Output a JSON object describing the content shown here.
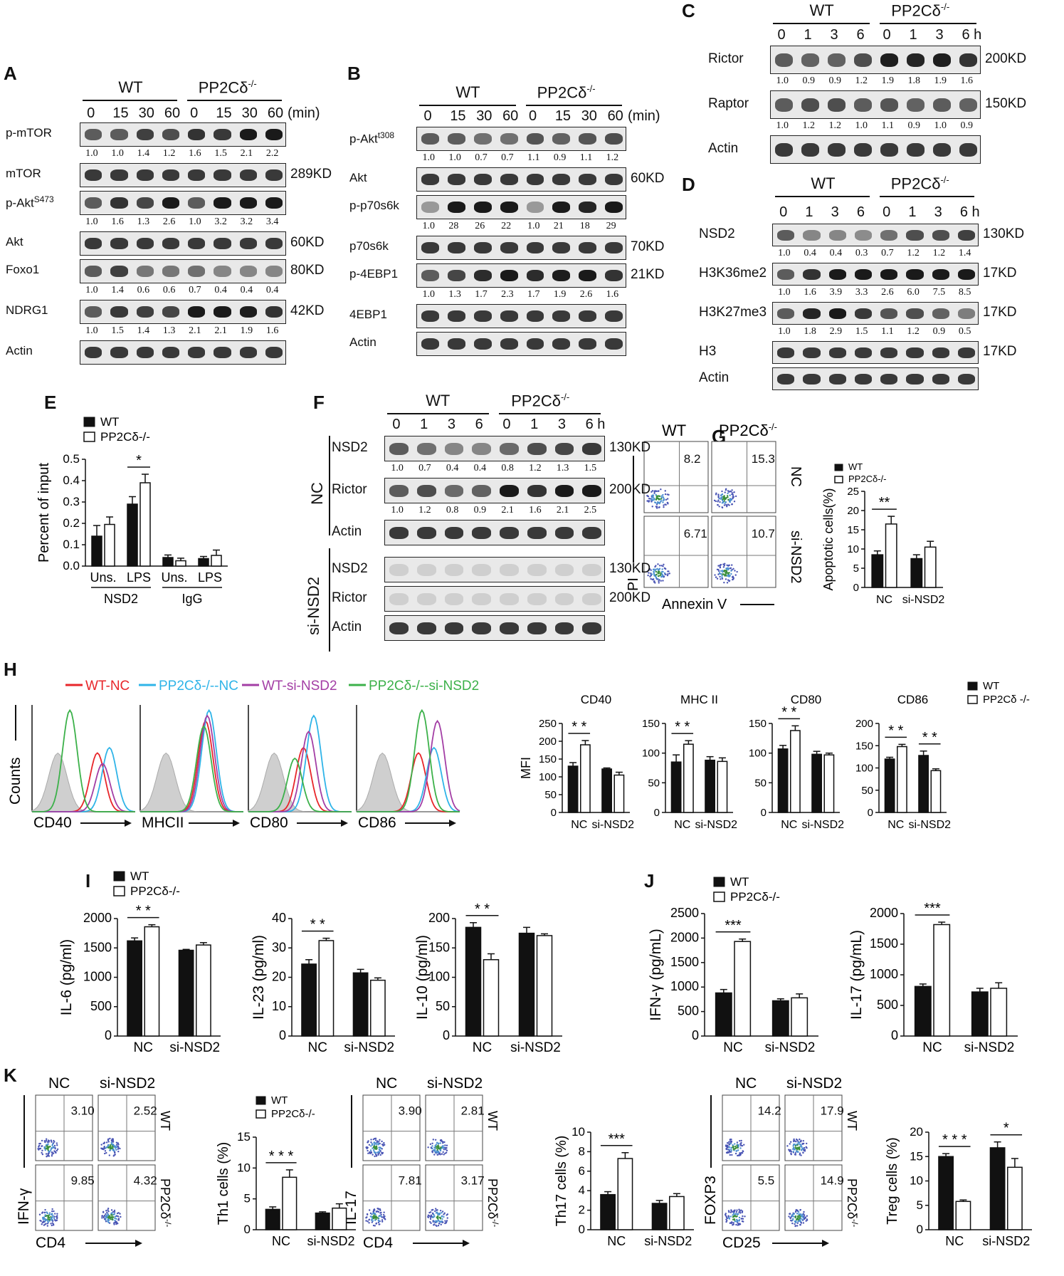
{
  "panel_labels": [
    "A",
    "B",
    "C",
    "D",
    "E",
    "F",
    "G",
    "H",
    "I",
    "J",
    "K"
  ],
  "groups": {
    "wt": "WT",
    "ko": "PP2Cδ-/-",
    "ko_base": "PP2Cδ",
    "ko_sup": "-/-"
  },
  "blot_A": {
    "times": [
      "0",
      "15",
      "30",
      "60",
      "0",
      "15",
      "30",
      "60"
    ],
    "unit": "(min)",
    "rows": [
      {
        "label": "p-mTOR",
        "quant": [
          "1.0",
          "1.0",
          "1.4",
          "1.2",
          "1.6",
          "1.5",
          "2.1",
          "2.2"
        ],
        "size": ""
      },
      {
        "label": "mTOR",
        "quant": [],
        "size": "289KD"
      },
      {
        "label": "p-Akt",
        "sup": "S473",
        "quant": [
          "1.0",
          "1.6",
          "1.3",
          "2.6",
          "1.0",
          "3.2",
          "3.2",
          "3.4"
        ],
        "size": ""
      },
      {
        "label": "Akt",
        "quant": [],
        "size": "60KD"
      },
      {
        "label": "Foxo1",
        "quant": [
          "1.0",
          "1.4",
          "0.6",
          "0.6",
          "0.7",
          "0.4",
          "0.4",
          "0.4"
        ],
        "size": "80KD"
      },
      {
        "label": "NDRG1",
        "quant": [
          "1.0",
          "1.5",
          "1.4",
          "1.3",
          "2.1",
          "2.1",
          "1.9",
          "1.6"
        ],
        "size": "42KD"
      },
      {
        "label": "Actin",
        "quant": [],
        "size": ""
      }
    ]
  },
  "blot_B": {
    "times": [
      "0",
      "15",
      "30",
      "60",
      "0",
      "15",
      "30",
      "60"
    ],
    "unit": "(min)",
    "rows": [
      {
        "label": "p-Akt",
        "sup": "t308",
        "quant": [
          "1.0",
          "1.0",
          "0.7",
          "0.7",
          "1.1",
          "0.9",
          "1.1",
          "1.2"
        ],
        "size": ""
      },
      {
        "label": "Akt",
        "quant": [],
        "size": "60KD"
      },
      {
        "label": "p-p70s6k",
        "quant": [
          "1.0",
          "28",
          "26",
          "22",
          "1.0",
          "21",
          "18",
          "29"
        ],
        "size": ""
      },
      {
        "label": "p70s6k",
        "quant": [],
        "size": "70KD"
      },
      {
        "label": "p-4EBP1",
        "quant": [
          "1.0",
          "1.3",
          "1.7",
          "2.3",
          "1.7",
          "1.9",
          "2.6",
          "1.6"
        ],
        "size": "21KD"
      },
      {
        "label": "4EBP1",
        "quant": [],
        "size": ""
      },
      {
        "label": "Actin",
        "quant": [],
        "size": ""
      }
    ]
  },
  "blot_C": {
    "times": [
      "0",
      "1",
      "3",
      "6",
      "0",
      "1",
      "3",
      "6 h"
    ],
    "rows": [
      {
        "label": "Rictor",
        "quant": [
          "1.0",
          "0.9",
          "0.9",
          "1.2",
          "1.9",
          "1.8",
          "1.9",
          "1.6"
        ],
        "size": "200KD"
      },
      {
        "label": "Raptor",
        "quant": [
          "1.0",
          "1.2",
          "1.2",
          "1.0",
          "1.1",
          "0.9",
          "1.0",
          "0.9"
        ],
        "size": "150KD"
      },
      {
        "label": "Actin",
        "quant": [],
        "size": ""
      }
    ]
  },
  "blot_D": {
    "times": [
      "0",
      "1",
      "3",
      "6",
      "0",
      "1",
      "3",
      "6 h"
    ],
    "rows": [
      {
        "label": "NSD2",
        "quant": [
          "1.0",
          "0.4",
          "0.4",
          "0.3",
          "0.7",
          "1.2",
          "1.2",
          "1.4"
        ],
        "size": "130KD"
      },
      {
        "label": "H3K36me2",
        "quant": [
          "1.0",
          "1.6",
          "3.9",
          "3.3",
          "2.6",
          "6.0",
          "7.5",
          "8.5"
        ],
        "size": "17KD"
      },
      {
        "label": "H3K27me3",
        "quant": [
          "1.0",
          "1.8",
          "2.9",
          "1.5",
          "1.1",
          "1.2",
          "0.9",
          "0.5"
        ],
        "size": "17KD"
      },
      {
        "label": "H3",
        "quant": [],
        "size": "17KD"
      },
      {
        "label": "Actin",
        "quant": [],
        "size": ""
      }
    ]
  },
  "blot_F": {
    "times": [
      "0",
      "1",
      "3",
      "6",
      "0",
      "1",
      "3",
      "6 h"
    ],
    "nc_label": "NC",
    "si_label": "si-NSD2",
    "rows": [
      {
        "label": "NSD2",
        "quant": [
          "1.0",
          "0.7",
          "0.4",
          "0.4",
          "0.8",
          "1.2",
          "1.3",
          "1.5"
        ],
        "size": "130KD"
      },
      {
        "label": "Rictor",
        "quant": [
          "1.0",
          "1.2",
          "0.8",
          "0.9",
          "2.1",
          "1.6",
          "2.1",
          "2.5"
        ],
        "size": "200KD"
      },
      {
        "label": "Actin",
        "quant": [],
        "size": ""
      },
      {
        "label": "NSD2",
        "quant": [],
        "size": "130KD"
      },
      {
        "label": "Rictor",
        "quant": [],
        "size": "200KD"
      },
      {
        "label": "Actin",
        "quant": [],
        "size": ""
      }
    ]
  },
  "panel_G": {
    "numbers": [
      "8.2",
      "15.3",
      "6.71",
      "10.7"
    ],
    "xlabel": "Annexin V",
    "ylabel": "PI",
    "row_labels": [
      "NC",
      "si-NSD2"
    ]
  },
  "panel_H": {
    "legend": [
      {
        "label": "WT-NC",
        "color": "#e8262a"
      },
      {
        "label": "PP2Cδ-/--NC",
        "color": "#2fb4e8"
      },
      {
        "label": "WT-si-NSD2",
        "color": "#a33ea5"
      },
      {
        "label": "PP2Cδ-/--si-NSD2",
        "color": "#3cb14a"
      }
    ],
    "markers": [
      "CD40",
      "MHCII",
      "CD80",
      "CD86"
    ],
    "ylabel": "Counts"
  },
  "panel_K": {
    "col_labels": [
      "NC",
      "si-NSD2"
    ],
    "row_labels": [
      "WT",
      "PP2Cδ-/-"
    ],
    "th1_numbers": [
      "3.10",
      "2.52",
      "9.85",
      "4.32"
    ],
    "th1_x": "CD4",
    "th1_y": "IFN-γ",
    "th17_numbers": [
      "3.90",
      "2.81",
      "7.81",
      "3.17"
    ],
    "th17_x": "CD4",
    "th17_y": "IL-17",
    "treg_numbers": [
      "14.2",
      "17.9",
      "5.5",
      "14.9"
    ],
    "treg_x": "CD25",
    "treg_y": "FOXP3"
  },
  "chart_data": [
    {
      "id": "E",
      "type": "bar",
      "categories": [
        "Uns.",
        "LPS",
        "Uns.",
        "LPS"
      ],
      "group_labels": [
        "NSD2",
        "IgG"
      ],
      "series": [
        {
          "name": "WT",
          "values": [
            0.14,
            0.29,
            0.04,
            0.035
          ]
        },
        {
          "name": "PP2Cδ-/-",
          "values": [
            0.195,
            0.39,
            0.025,
            0.05
          ]
        }
      ],
      "errors": [
        [
          0.05,
          0.035,
          0.012,
          0.01
        ],
        [
          0.035,
          0.04,
          0.012,
          0.025
        ]
      ],
      "ylabel": "Percent of input",
      "ylim": [
        0,
        0.5
      ],
      "yticks": [
        "0.0",
        "0.1",
        "0.2",
        "0.3",
        "0.4",
        "0.5"
      ],
      "sig": [
        {
          "cat": 1,
          "label": "*"
        }
      ]
    },
    {
      "id": "G",
      "type": "bar",
      "categories": [
        "NC",
        "si-NSD2"
      ],
      "series": [
        {
          "name": "WT",
          "values": [
            8.5,
            7.5
          ]
        },
        {
          "name": "PP2Cδ-/-",
          "values": [
            16.5,
            10.5
          ]
        }
      ],
      "errors": [
        [
          1,
          1
        ],
        [
          2,
          1.5
        ]
      ],
      "ylabel": "Apoptotic cells(%)",
      "ylim": [
        0,
        25
      ],
      "yticks": [
        "0",
        "5",
        "10",
        "15",
        "20",
        "25"
      ],
      "sig": [
        {
          "cat": 0,
          "label": "**"
        }
      ]
    },
    {
      "id": "H1",
      "type": "bar",
      "title": "CD40",
      "categories": [
        "NC",
        "si-NSD2"
      ],
      "series": [
        {
          "name": "WT",
          "values": [
            130,
            122
          ]
        },
        {
          "name": "PP2Cδ-/-",
          "values": [
            190,
            105
          ]
        }
      ],
      "errors": [
        [
          10,
          3
        ],
        [
          12,
          8
        ]
      ],
      "ylabel": "MFI",
      "ylim": [
        0,
        250
      ],
      "yticks": [
        "0",
        "50",
        "100",
        "150",
        "200",
        "250"
      ],
      "sig": [
        {
          "cat": 0,
          "label": "* *"
        }
      ]
    },
    {
      "id": "H2",
      "type": "bar",
      "title": "MHC II",
      "categories": [
        "NC",
        "si-NSD2"
      ],
      "series": [
        {
          "name": "WT",
          "values": [
            85,
            88
          ]
        },
        {
          "name": "PP2Cδ-/-",
          "values": [
            115,
            86
          ]
        }
      ],
      "errors": [
        [
          12,
          6
        ],
        [
          6,
          6
        ]
      ],
      "ylabel": "",
      "ylim": [
        0,
        150
      ],
      "yticks": [
        "0",
        "50",
        "100",
        "150"
      ],
      "sig": [
        {
          "cat": 0,
          "label": "* *"
        }
      ]
    },
    {
      "id": "H3",
      "type": "bar",
      "title": "CD80",
      "categories": [
        "NC",
        "si-NSD2"
      ],
      "series": [
        {
          "name": "WT",
          "values": [
            107,
            98
          ]
        },
        {
          "name": "PP2Cδ-/-",
          "values": [
            138,
            97
          ]
        }
      ],
      "errors": [
        [
          6,
          5
        ],
        [
          8,
          3
        ]
      ],
      "ylabel": "",
      "ylim": [
        0,
        150
      ],
      "yticks": [
        "0",
        "50",
        "100",
        "150"
      ],
      "sig": [
        {
          "cat": 0,
          "label": "* *"
        }
      ]
    },
    {
      "id": "H4",
      "type": "bar",
      "title": "CD86",
      "categories": [
        "NC",
        "si-NSD2"
      ],
      "series": [
        {
          "name": "WT",
          "values": [
            120,
            128
          ]
        },
        {
          "name": "PP2Cδ -/-",
          "values": [
            148,
            94
          ]
        }
      ],
      "errors": [
        [
          4,
          10
        ],
        [
          5,
          4
        ]
      ],
      "ylabel": "",
      "ylim": [
        0,
        200
      ],
      "yticks": [
        "0",
        "50",
        "100",
        "150",
        "200"
      ],
      "sig": [
        {
          "cat": 0,
          "label": "* *"
        },
        {
          "cat": 1,
          "label": "* *"
        }
      ]
    },
    {
      "id": "I1",
      "type": "bar",
      "categories": [
        "NC",
        "si-NSD2"
      ],
      "series": [
        {
          "name": "WT",
          "values": [
            1620,
            1460
          ]
        },
        {
          "name": "PP2Cδ-/-",
          "values": [
            1860,
            1550
          ]
        }
      ],
      "errors": [
        [
          50,
          15
        ],
        [
          35,
          40
        ]
      ],
      "ylabel": "IL-6 (pg/ml)",
      "ylim": [
        0,
        2000
      ],
      "yticks": [
        "0",
        "500",
        "1000",
        "1500",
        "2000"
      ],
      "sig": [
        {
          "cat": 0,
          "label": "* *"
        }
      ]
    },
    {
      "id": "I2",
      "type": "bar",
      "categories": [
        "NC",
        "si-NSD2"
      ],
      "series": [
        {
          "name": "WT",
          "values": [
            24.5,
            21.5
          ]
        },
        {
          "name": "PP2Cδ-/-",
          "values": [
            32.5,
            19
          ]
        }
      ],
      "errors": [
        [
          1.5,
          1.2
        ],
        [
          0.8,
          0.8
        ]
      ],
      "ylabel": "IL-23 (pg/ml)",
      "ylim": [
        0,
        40
      ],
      "yticks": [
        "0",
        "10",
        "20",
        "30",
        "40"
      ],
      "sig": [
        {
          "cat": 0,
          "label": "* *"
        }
      ]
    },
    {
      "id": "I3",
      "type": "bar",
      "categories": [
        "NC",
        "si-NSD2"
      ],
      "series": [
        {
          "name": "WT",
          "values": [
            185,
            175
          ]
        },
        {
          "name": "PP2Cδ-/-",
          "values": [
            130,
            171
          ]
        }
      ],
      "errors": [
        [
          8,
          10
        ],
        [
          10,
          3
        ]
      ],
      "ylabel": "IL-10 (pg/ml)",
      "ylim": [
        0,
        200
      ],
      "yticks": [
        "0",
        "50",
        "100",
        "150",
        "200"
      ],
      "sig": [
        {
          "cat": 0,
          "label": "* *"
        }
      ]
    },
    {
      "id": "J1",
      "type": "bar",
      "categories": [
        "NC",
        "si-NSD2"
      ],
      "series": [
        {
          "name": "WT",
          "values": [
            880,
            720
          ]
        },
        {
          "name": "PP2Cδ-/-",
          "values": [
            1930,
            780
          ]
        }
      ],
      "errors": [
        [
          70,
          40
        ],
        [
          50,
          80
        ]
      ],
      "ylabel": "IFN-γ (pg/mL)",
      "ylim": [
        0,
        2500
      ],
      "yticks": [
        "0",
        "500",
        "1000",
        "1500",
        "2000",
        "2500"
      ],
      "sig": [
        {
          "cat": 0,
          "label": "***"
        }
      ]
    },
    {
      "id": "J2",
      "type": "bar",
      "categories": [
        "NC",
        "si-NSD2"
      ],
      "series": [
        {
          "name": "WT",
          "values": [
            810,
            720
          ]
        },
        {
          "name": "PP2Cδ-/-",
          "values": [
            1820,
            780
          ]
        }
      ],
      "errors": [
        [
          40,
          60
        ],
        [
          40,
          90
        ]
      ],
      "ylabel": "IL-17 (pg/mL)",
      "ylim": [
        0,
        2000
      ],
      "yticks": [
        "0",
        "500",
        "1000",
        "1500",
        "2000"
      ],
      "sig": [
        {
          "cat": 0,
          "label": "***"
        }
      ]
    },
    {
      "id": "K1",
      "type": "bar",
      "categories": [
        "NC",
        "si-NSD2"
      ],
      "series": [
        {
          "name": "WT",
          "values": [
            3.3,
            2.7
          ]
        },
        {
          "name": "PP2Cδ-/-",
          "values": [
            8.5,
            3.5
          ]
        }
      ],
      "errors": [
        [
          0.4,
          0.2
        ],
        [
          1.2,
          0.7
        ]
      ],
      "ylabel": "Th1 cells (%)",
      "ylim": [
        0,
        15
      ],
      "yticks": [
        "0",
        "5",
        "10",
        "15"
      ],
      "sig": [
        {
          "cat": 0,
          "label": "* * *"
        }
      ]
    },
    {
      "id": "K2",
      "type": "bar",
      "categories": [
        "NC",
        "si-NSD2"
      ],
      "series": [
        {
          "name": "WT",
          "values": [
            3.6,
            2.7
          ]
        },
        {
          "name": "PP2Cδ-/-",
          "values": [
            7.3,
            3.4
          ]
        }
      ],
      "errors": [
        [
          0.3,
          0.3
        ],
        [
          0.6,
          0.3
        ]
      ],
      "ylabel": "Th17 cells (%)",
      "ylim": [
        0,
        10
      ],
      "yticks": [
        "0",
        "2",
        "4",
        "6",
        "8",
        "10"
      ],
      "sig": [
        {
          "cat": 0,
          "label": "***"
        }
      ]
    },
    {
      "id": "K3",
      "type": "bar",
      "categories": [
        "NC",
        "si-NSD2"
      ],
      "series": [
        {
          "name": "WT",
          "values": [
            15,
            16.8
          ]
        },
        {
          "name": "PP2Cδ-/-",
          "values": [
            5.8,
            12.8
          ]
        }
      ],
      "errors": [
        [
          0.6,
          1.2
        ],
        [
          0.3,
          1.8
        ]
      ],
      "ylabel": "Treg cells (%)",
      "ylim": [
        0,
        20
      ],
      "yticks": [
        "0",
        "5",
        "10",
        "15",
        "20"
      ],
      "sig": [
        {
          "cat": 0,
          "label": "* * *"
        },
        {
          "cat": 1,
          "label": "*"
        }
      ]
    }
  ]
}
